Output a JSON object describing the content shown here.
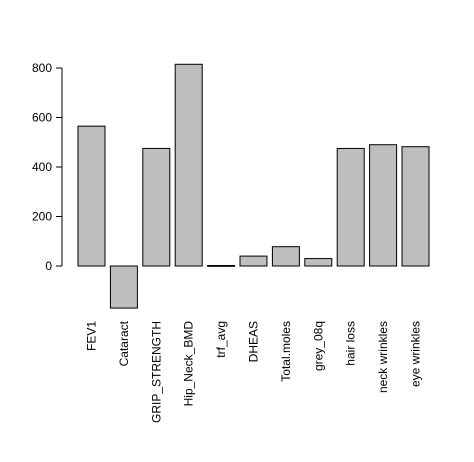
{
  "chart_data": {
    "type": "bar",
    "title": "",
    "xlabel": "",
    "ylabel": "",
    "categories": [
      "FEV1",
      "Cataract",
      "GRIP_STRENGTH",
      "Hip_Neck_BMD",
      "trf_avg",
      "DHEAS",
      "Total.moles",
      "grey_08q",
      "hair loss",
      "neck wrinkles",
      "eye wrinkles"
    ],
    "values": [
      565,
      -170,
      475,
      815,
      2,
      40,
      78,
      30,
      475,
      490,
      482
    ],
    "yticks": [
      0,
      200,
      400,
      600,
      800
    ],
    "ylim": [
      -170,
      815
    ],
    "grid": false,
    "bar_color": "#bebebe",
    "edge_color": "#000000"
  }
}
